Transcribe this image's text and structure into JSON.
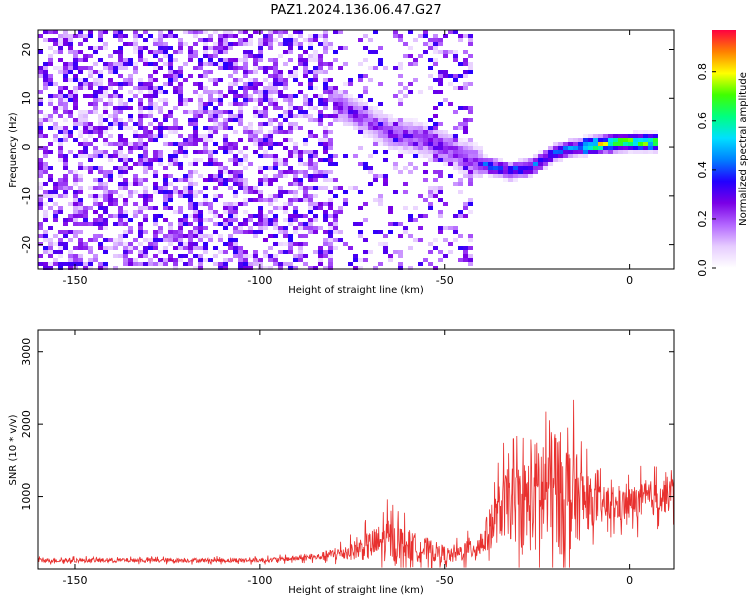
{
  "title": "PAZ1.2024.136.06.47.G27",
  "chart_data": [
    {
      "type": "heatmap",
      "xlabel": "Height of straight line (km)",
      "ylabel": "Frequency (Hz)",
      "xlim": [
        -160,
        12
      ],
      "ylim": [
        -25,
        24
      ],
      "xticks": [
        -150,
        -100,
        -50,
        0
      ],
      "yticks": [
        -20,
        -10,
        0,
        10,
        20
      ],
      "colorbar": {
        "label": "Normalized spectral amplitude",
        "range": [
          0,
          0.97
        ],
        "ticks": [
          0.0,
          0.2,
          0.4,
          0.6,
          0.8
        ],
        "colormap": [
          "#ffffff",
          "#e6ccff",
          "#b366ff",
          "#7a00e6",
          "#2200ff",
          "#0080ff",
          "#00e0ff",
          "#00ff80",
          "#40ff00",
          "#ffff00",
          "#ff8000",
          "#ff0040"
        ]
      },
      "signal_track": [
        {
          "x": -80,
          "f": 9
        },
        {
          "x": -72,
          "f": 6
        },
        {
          "x": -65,
          "f": 3
        },
        {
          "x": -58,
          "f": 2
        },
        {
          "x": -50,
          "f": 0
        },
        {
          "x": -45,
          "f": -2
        },
        {
          "x": -38,
          "f": -4
        },
        {
          "x": -32,
          "f": -5
        },
        {
          "x": -26,
          "f": -4
        },
        {
          "x": -20,
          "f": -1
        },
        {
          "x": -14,
          "f": 0
        },
        {
          "x": -8,
          "f": 0.5
        },
        {
          "x": 0,
          "f": 1
        },
        {
          "x": 8,
          "f": 1
        }
      ]
    },
    {
      "type": "line",
      "xlabel": "Height of straight line (km)",
      "ylabel": "SNR (10 * v/v)",
      "xlim": [
        -160,
        12
      ],
      "ylim": [
        0,
        3300
      ],
      "xticks": [
        -150,
        -100,
        -50,
        0
      ],
      "yticks": [
        1000,
        2000,
        3000
      ],
      "color": "#e8302e",
      "envelope": [
        {
          "x": -160,
          "base": 120,
          "amp": 60
        },
        {
          "x": -100,
          "base": 120,
          "amp": 60
        },
        {
          "x": -85,
          "base": 160,
          "amp": 80
        },
        {
          "x": -75,
          "base": 250,
          "amp": 250
        },
        {
          "x": -65,
          "base": 400,
          "amp": 600
        },
        {
          "x": -58,
          "base": 300,
          "amp": 400
        },
        {
          "x": -48,
          "base": 180,
          "amp": 200
        },
        {
          "x": -40,
          "base": 350,
          "amp": 400
        },
        {
          "x": -34,
          "base": 900,
          "amp": 900
        },
        {
          "x": -28,
          "base": 900,
          "amp": 1300
        },
        {
          "x": -22,
          "base": 1100,
          "amp": 2000
        },
        {
          "x": -16,
          "base": 1000,
          "amp": 1500
        },
        {
          "x": -10,
          "base": 900,
          "amp": 600
        },
        {
          "x": -4,
          "base": 850,
          "amp": 450
        },
        {
          "x": 4,
          "base": 950,
          "amp": 500
        },
        {
          "x": 12,
          "base": 1050,
          "amp": 500
        }
      ]
    }
  ]
}
